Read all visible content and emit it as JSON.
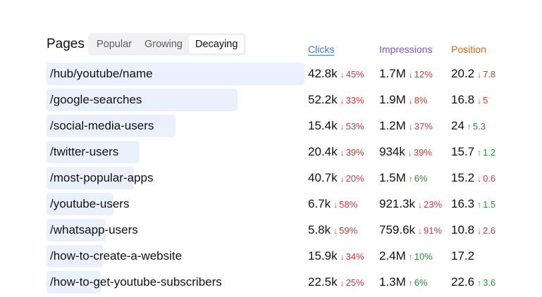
{
  "header": {
    "title": "Pages",
    "tabs": [
      {
        "label": "Popular",
        "active": false
      },
      {
        "label": "Growing",
        "active": false
      },
      {
        "label": "Decaying",
        "active": true
      }
    ],
    "columns": {
      "clicks": "Clicks",
      "impressions": "Impressions",
      "position": "Position"
    }
  },
  "colors": {
    "bar": "#eaf1fd",
    "clicks_header": "#3d7bd6",
    "impressions_header": "#7a55c9",
    "position_header": "#d2661d",
    "down": "#c83a3a",
    "up": "#2a8a3e"
  },
  "rows": [
    {
      "page": "/hub/youtube/name",
      "bar_fraction": 1.0,
      "clicks": {
        "value": "42.8k",
        "change": "45%",
        "dir": "down"
      },
      "impressions": {
        "value": "1.7M",
        "change": "12%",
        "dir": "down"
      },
      "position": {
        "value": "20.2",
        "change": "7.8",
        "dir": "down"
      }
    },
    {
      "page": "/google-searches",
      "bar_fraction": 0.74,
      "clicks": {
        "value": "52.2k",
        "change": "33%",
        "dir": "down"
      },
      "impressions": {
        "value": "1.9M",
        "change": "8%",
        "dir": "down"
      },
      "position": {
        "value": "16.8",
        "change": "5",
        "dir": "down"
      }
    },
    {
      "page": "/social-media-users",
      "bar_fraction": 0.5,
      "clicks": {
        "value": "15.4k",
        "change": "53%",
        "dir": "down"
      },
      "impressions": {
        "value": "1.2M",
        "change": "37%",
        "dir": "down"
      },
      "position": {
        "value": "24",
        "change": "5.3",
        "dir": "up"
      }
    },
    {
      "page": "/twitter-users",
      "bar_fraction": 0.36,
      "clicks": {
        "value": "20.4k",
        "change": "39%",
        "dir": "down"
      },
      "impressions": {
        "value": "934k",
        "change": "39%",
        "dir": "down"
      },
      "position": {
        "value": "15.7",
        "change": "1.2",
        "dir": "up"
      }
    },
    {
      "page": "/most-popular-apps",
      "bar_fraction": 0.34,
      "clicks": {
        "value": "40.7k",
        "change": "20%",
        "dir": "down"
      },
      "impressions": {
        "value": "1.5M",
        "change": "6%",
        "dir": "up"
      },
      "position": {
        "value": "15.2",
        "change": "0.6",
        "dir": "down"
      }
    },
    {
      "page": "/youtube-users",
      "bar_fraction": 0.26,
      "clicks": {
        "value": "6.7k",
        "change": "58%",
        "dir": "down"
      },
      "impressions": {
        "value": "921.3k",
        "change": "23%",
        "dir": "down"
      },
      "position": {
        "value": "16.3",
        "change": "1.5",
        "dir": "up"
      }
    },
    {
      "page": "/whatsapp-users",
      "bar_fraction": 0.23,
      "clicks": {
        "value": "5.8k",
        "change": "59%",
        "dir": "down"
      },
      "impressions": {
        "value": "759.6k",
        "change": "91%",
        "dir": "down"
      },
      "position": {
        "value": "10.8",
        "change": "2.6",
        "dir": "down"
      }
    },
    {
      "page": "/how-to-create-a-website",
      "bar_fraction": 0.22,
      "clicks": {
        "value": "15.9k",
        "change": "34%",
        "dir": "down"
      },
      "impressions": {
        "value": "2.4M",
        "change": "10%",
        "dir": "up"
      },
      "position": {
        "value": "17.2",
        "change": "",
        "dir": ""
      }
    },
    {
      "page": "/how-to-get-youtube-subscribers",
      "bar_fraction": 0.21,
      "clicks": {
        "value": "22.5k",
        "change": "25%",
        "dir": "down"
      },
      "impressions": {
        "value": "1.3M",
        "change": "6%",
        "dir": "up"
      },
      "position": {
        "value": "22.6",
        "change": "3.6",
        "dir": "up"
      }
    }
  ]
}
